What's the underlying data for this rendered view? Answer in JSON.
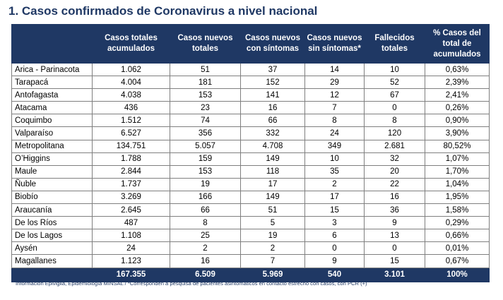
{
  "title": "1. Casos confirmados de Coronavirus a nivel nacional",
  "table": {
    "headers": [
      "",
      "Casos totales acumulados",
      "Casos nuevos totales",
      "Casos nuevos con síntomas",
      "Casos nuevos sin síntomas*",
      "Fallecidos totales",
      "% Casos del total de acumulados"
    ],
    "rows": [
      [
        "Arica - Parinacota",
        "1.062",
        "51",
        "37",
        "14",
        "10",
        "0,63%"
      ],
      [
        "Tarapacá",
        "4.004",
        "181",
        "152",
        "29",
        "52",
        "2,39%"
      ],
      [
        "Antofagasta",
        "4.038",
        "153",
        "141",
        "12",
        "67",
        "2,41%"
      ],
      [
        "Atacama",
        "436",
        "23",
        "16",
        "7",
        "0",
        "0,26%"
      ],
      [
        "Coquimbo",
        "1.512",
        "74",
        "66",
        "8",
        "8",
        "0,90%"
      ],
      [
        "Valparaíso",
        "6.527",
        "356",
        "332",
        "24",
        "120",
        "3,90%"
      ],
      [
        "Metropolitana",
        "134.751",
        "5.057",
        "4.708",
        "349",
        "2.681",
        "80,52%"
      ],
      [
        "O’Higgins",
        "1.788",
        "159",
        "149",
        "10",
        "32",
        "1,07%"
      ],
      [
        "Maule",
        "2.844",
        "153",
        "118",
        "35",
        "20",
        "1,70%"
      ],
      [
        "Ñuble",
        "1.737",
        "19",
        "17",
        "2",
        "22",
        "1,04%"
      ],
      [
        "Biobío",
        "3.269",
        "166",
        "149",
        "17",
        "16",
        "1,95%"
      ],
      [
        "Araucanía",
        "2.645",
        "66",
        "51",
        "15",
        "36",
        "1,58%"
      ],
      [
        "De los Ríos",
        "487",
        "8",
        "5",
        "3",
        "9",
        "0,29%"
      ],
      [
        "De los Lagos",
        "1.108",
        "25",
        "19",
        "6",
        "13",
        "0,66%"
      ],
      [
        "Aysén",
        "24",
        "2",
        "2",
        "0",
        "0",
        "0,01%"
      ],
      [
        "Magallanes",
        "1.123",
        "16",
        "7",
        "9",
        "15",
        "0,67%"
      ]
    ],
    "totals": [
      "",
      "167.355",
      "6.509",
      "5.969",
      "540",
      "3.101",
      "100%"
    ]
  },
  "footnote": "Información Epivigila, Epidemiología MINSAL / *Corresponden a pesquisa de pacientes asintomáticos en contacto estrecho con casos, con PCR (+)",
  "colors": {
    "header_bg": "#1f3864",
    "header_text": "#ffffff",
    "title": "#1f3864",
    "border": "#7f7f7f"
  }
}
